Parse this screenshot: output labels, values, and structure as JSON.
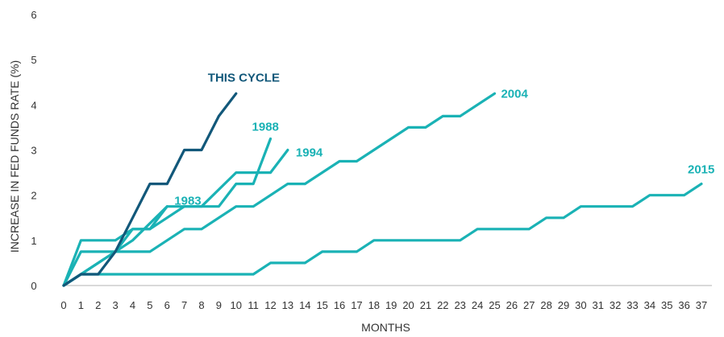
{
  "chart_data": {
    "type": "line",
    "title": "",
    "xlabel": "MONTHS",
    "ylabel": "INCREASE IN FED FUNDS RATE (%)",
    "xlim": [
      0,
      37
    ],
    "ylim": [
      0,
      6
    ],
    "x_ticks": [
      0,
      1,
      2,
      3,
      4,
      5,
      6,
      7,
      8,
      9,
      10,
      11,
      12,
      13,
      14,
      15,
      16,
      17,
      18,
      19,
      20,
      21,
      22,
      23,
      24,
      25,
      26,
      27,
      28,
      29,
      30,
      31,
      32,
      33,
      34,
      35,
      36,
      37
    ],
    "y_ticks": [
      0,
      1,
      2,
      3,
      4,
      5,
      6
    ],
    "grid": false,
    "legend": "inline labels at line ends",
    "colors": {
      "this_cycle": "#12587a",
      "past_cycles": "#1ab2b5"
    },
    "series": [
      {
        "name": "2015",
        "color": "#1ab2b5",
        "x": [
          0,
          1,
          11,
          12,
          14,
          15,
          17,
          18,
          23,
          24,
          27,
          28,
          29,
          30,
          33,
          34,
          36,
          37
        ],
        "y": [
          0,
          0.25,
          0.25,
          0.5,
          0.5,
          0.75,
          0.75,
          1.0,
          1.0,
          1.25,
          1.25,
          1.5,
          1.5,
          1.75,
          1.75,
          2.0,
          2.0,
          2.25
        ]
      },
      {
        "name": "2004",
        "color": "#1ab2b5",
        "x": [
          0,
          1,
          5,
          7,
          8,
          10,
          11,
          13,
          14,
          16,
          17,
          20,
          21,
          22,
          23,
          25
        ],
        "y": [
          0,
          0.75,
          0.75,
          1.25,
          1.25,
          1.75,
          1.75,
          2.25,
          2.25,
          2.75,
          2.75,
          3.5,
          3.5,
          3.75,
          3.75,
          4.25
        ]
      },
      {
        "name": "1994",
        "color": "#1ab2b5",
        "x": [
          0,
          1,
          4,
          6,
          8,
          10,
          12,
          13
        ],
        "y": [
          0,
          0.25,
          1.0,
          1.75,
          1.75,
          2.5,
          2.5,
          3.0
        ]
      },
      {
        "name": "1988",
        "color": "#1ab2b5",
        "x": [
          0,
          1,
          3,
          4,
          5,
          7,
          9,
          10,
          11,
          12
        ],
        "y": [
          0,
          1.0,
          1.0,
          1.25,
          1.25,
          1.75,
          1.75,
          2.25,
          2.25,
          3.25
        ]
      },
      {
        "name": "1983",
        "color": "#1ab2b5",
        "x": [
          0,
          1,
          2,
          3,
          4,
          5,
          6
        ],
        "y": [
          0,
          0.25,
          0.5,
          0.75,
          1.25,
          1.25,
          1.75
        ]
      },
      {
        "name": "THIS CYCLE",
        "color": "#12587a",
        "x": [
          0,
          1,
          2,
          3,
          4,
          5,
          6,
          7,
          8,
          9,
          10
        ],
        "y": [
          0,
          0.25,
          0.25,
          0.75,
          1.5,
          2.25,
          2.25,
          3.0,
          3.0,
          3.75,
          4.25
        ]
      }
    ],
    "labels": [
      {
        "text": "2015",
        "series": "2015"
      },
      {
        "text": "2004",
        "series": "2004"
      },
      {
        "text": "1994",
        "series": "1994"
      },
      {
        "text": "1988",
        "series": "1988"
      },
      {
        "text": "1983",
        "series": "1983"
      },
      {
        "text": "THIS CYCLE",
        "series": "THIS CYCLE"
      }
    ]
  }
}
